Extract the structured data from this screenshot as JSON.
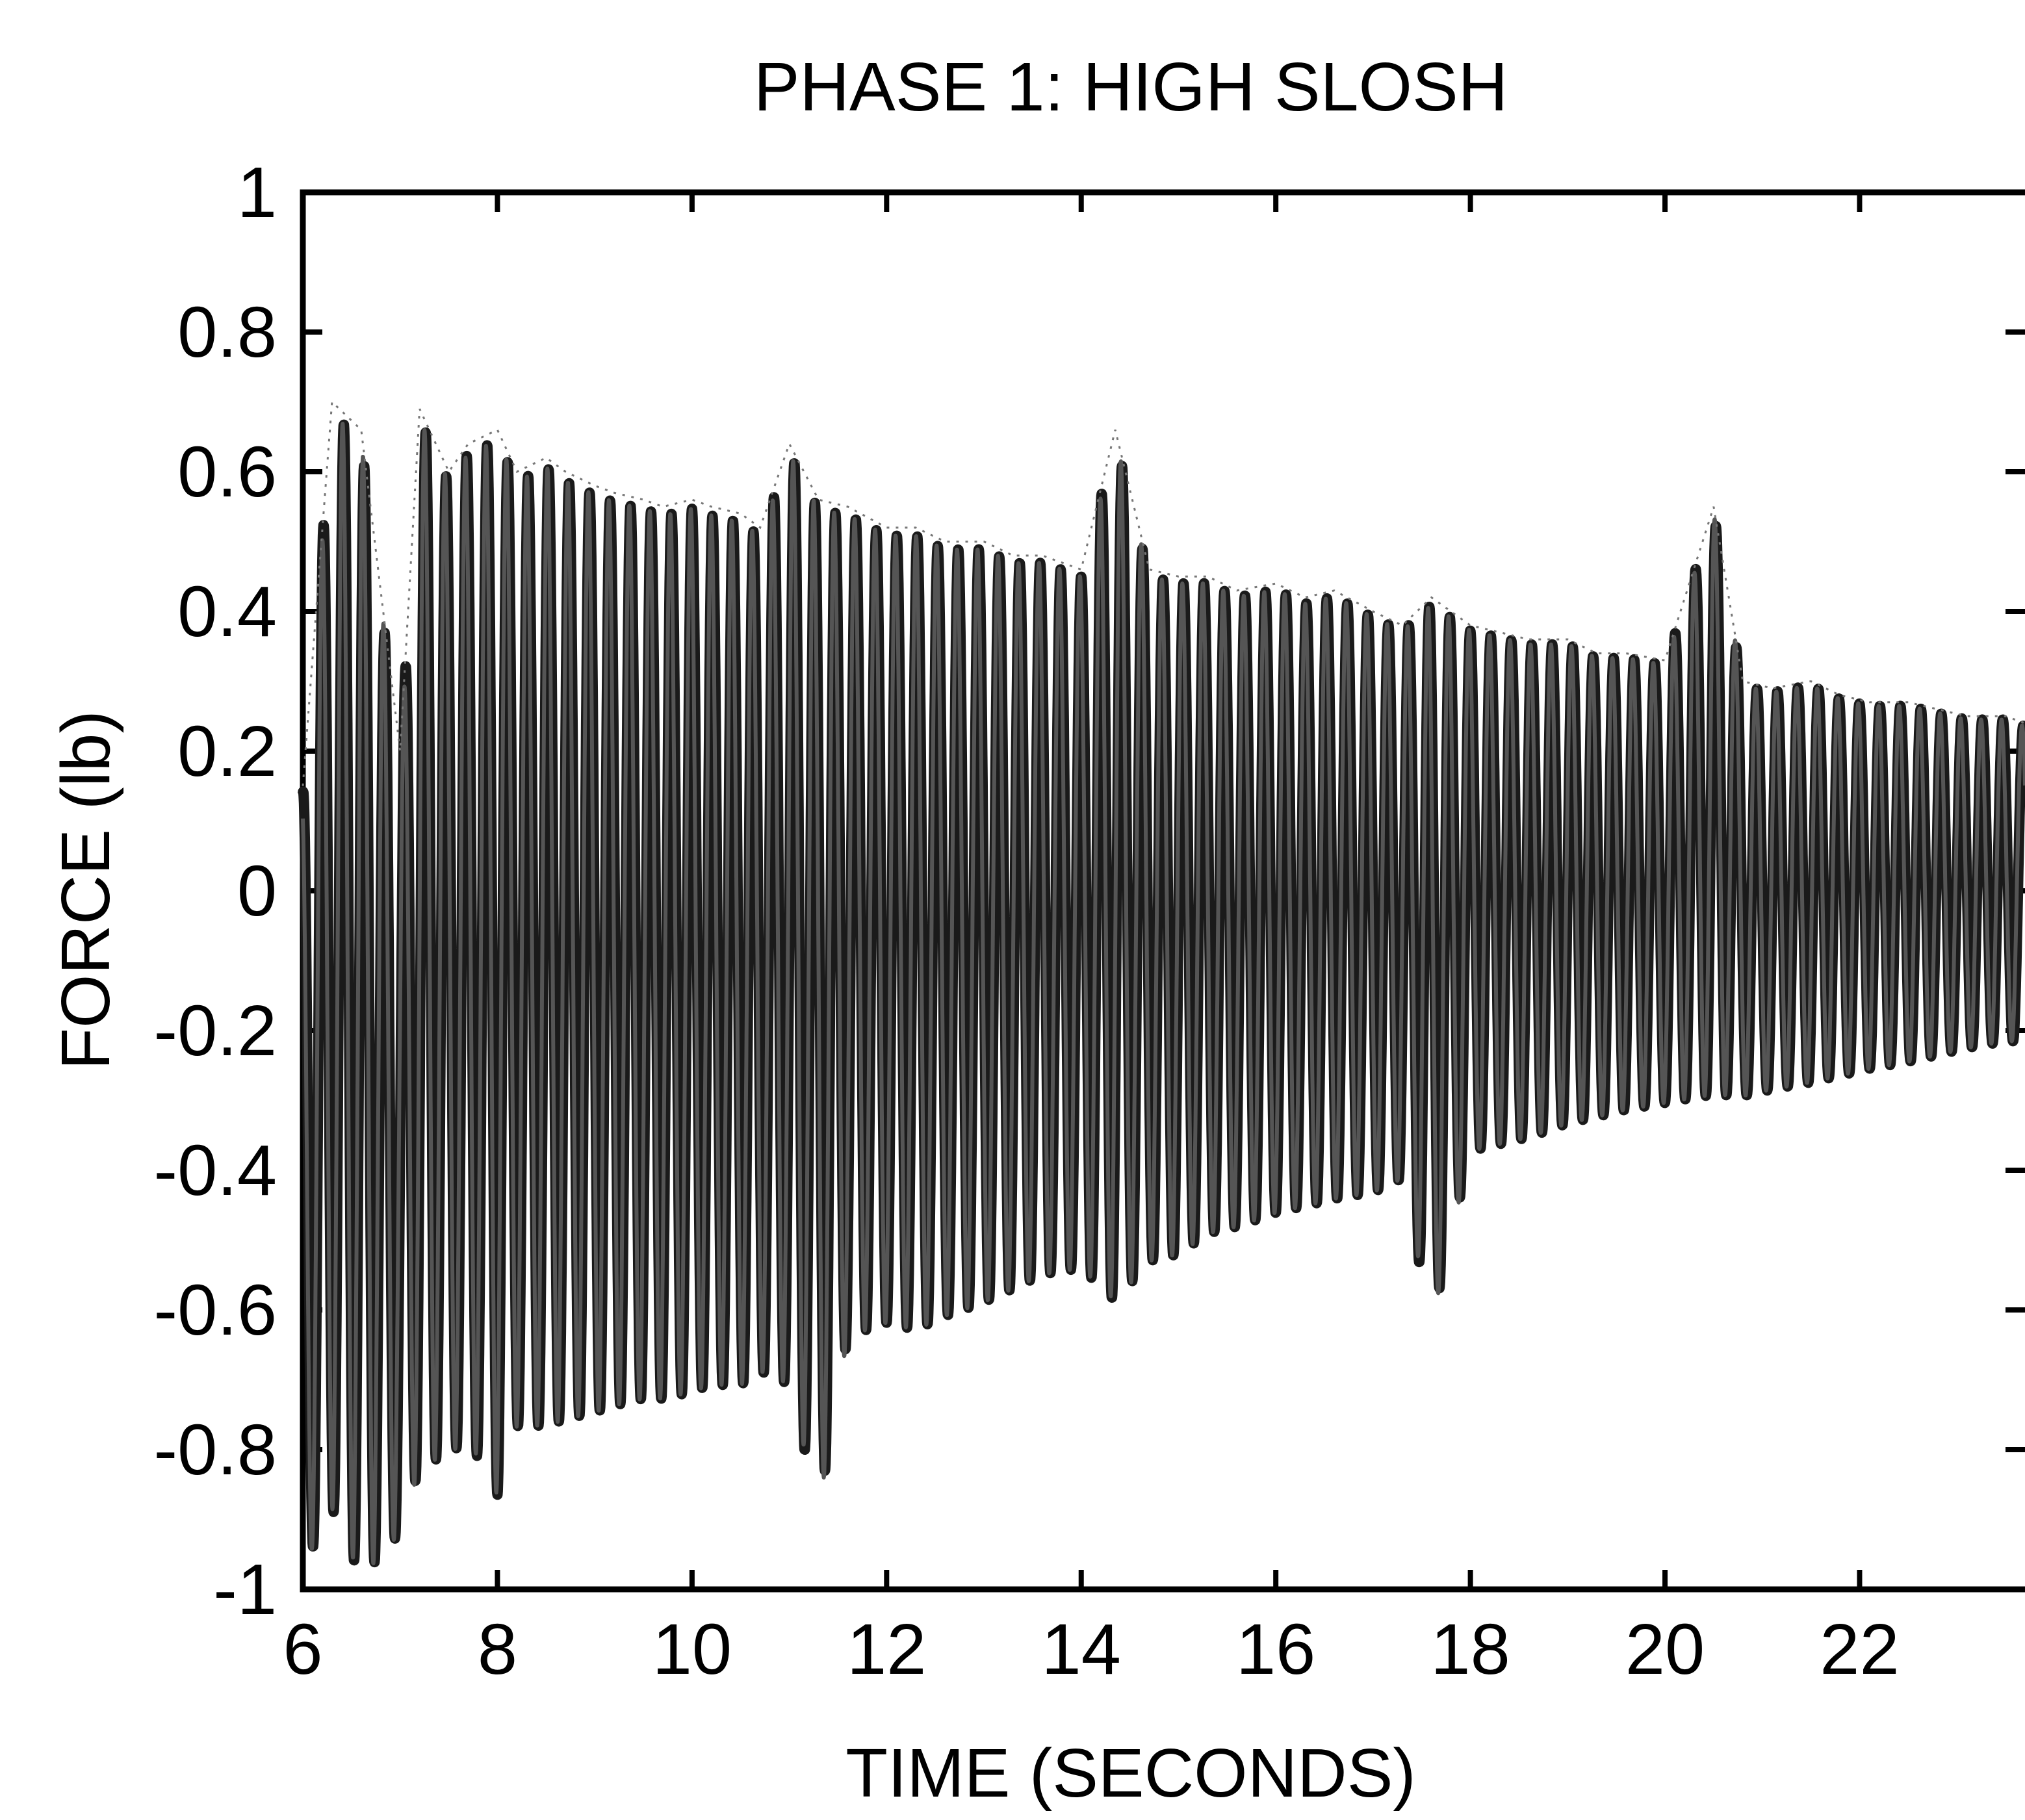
{
  "chart_data": {
    "type": "line",
    "title": "PHASE 1: HIGH SLOSH",
    "xlabel": "TIME (SECONDS)",
    "ylabel": "FORCE (lb)",
    "xlim": [
      6,
      23.7
    ],
    "ylim": [
      -1,
      1
    ],
    "xticks": [
      "6",
      "8",
      "10",
      "12",
      "14",
      "16",
      "18",
      "20",
      "22"
    ],
    "yticks": [
      "1",
      "0.8",
      "0.6",
      "0.4",
      "0.2",
      "0",
      "-0.2",
      "-0.4",
      "-0.6",
      "-0.8",
      "-1"
    ],
    "grid": false,
    "legend": "none",
    "line_color": "#000000",
    "series": [
      {
        "values_description_note": "",
        "x": [
          6.0,
          6.3,
          6.6,
          7.0,
          7.2,
          7.5,
          7.7,
          8.0,
          8.2,
          8.5,
          8.7,
          9.0,
          9.2,
          9.5,
          9.7,
          10.0,
          10.2,
          10.5,
          10.7,
          11.0,
          11.3,
          11.6,
          12.0,
          12.3,
          12.6,
          13.0,
          13.3,
          13.6,
          14.0,
          14.35,
          14.7,
          15.0,
          15.3,
          15.6,
          16.0,
          16.3,
          16.6,
          17.0,
          17.3,
          17.6,
          18.0,
          18.3,
          18.6,
          19.0,
          19.3,
          19.6,
          20.0,
          20.5,
          20.8,
          21.1,
          21.5,
          21.8,
          22.1,
          22.5,
          22.8,
          23.1,
          23.5,
          23.7
        ],
        "envelope_max": [
          0.15,
          0.7,
          0.66,
          0.2,
          0.69,
          0.6,
          0.64,
          0.66,
          0.6,
          0.62,
          0.6,
          0.58,
          0.57,
          0.56,
          0.55,
          0.56,
          0.55,
          0.54,
          0.52,
          0.64,
          0.56,
          0.55,
          0.52,
          0.52,
          0.5,
          0.5,
          0.48,
          0.48,
          0.46,
          0.66,
          0.46,
          0.45,
          0.45,
          0.43,
          0.44,
          0.42,
          0.43,
          0.4,
          0.38,
          0.42,
          0.38,
          0.37,
          0.36,
          0.36,
          0.34,
          0.34,
          0.33,
          0.55,
          0.3,
          0.29,
          0.3,
          0.28,
          0.27,
          0.27,
          0.26,
          0.25,
          0.25,
          0.24
        ],
        "envelope_min": [
          -0.98,
          -0.9,
          -1.0,
          -0.93,
          -0.84,
          -0.82,
          -0.8,
          -0.88,
          -0.78,
          -0.78,
          -0.77,
          -0.76,
          -0.75,
          -0.74,
          -0.74,
          -0.73,
          -0.72,
          -0.72,
          -0.7,
          -0.72,
          -0.9,
          -0.65,
          -0.63,
          -0.64,
          -0.62,
          -0.6,
          -0.58,
          -0.56,
          -0.55,
          -0.6,
          -0.54,
          -0.53,
          -0.5,
          -0.49,
          -0.47,
          -0.46,
          -0.45,
          -0.44,
          -0.42,
          -0.63,
          -0.38,
          -0.37,
          -0.36,
          -0.34,
          -0.33,
          -0.32,
          -0.31,
          -0.3,
          -0.3,
          -0.29,
          -0.28,
          -0.27,
          -0.26,
          -0.25,
          -0.24,
          -0.23,
          -0.22,
          -0.22
        ]
      }
    ]
  }
}
